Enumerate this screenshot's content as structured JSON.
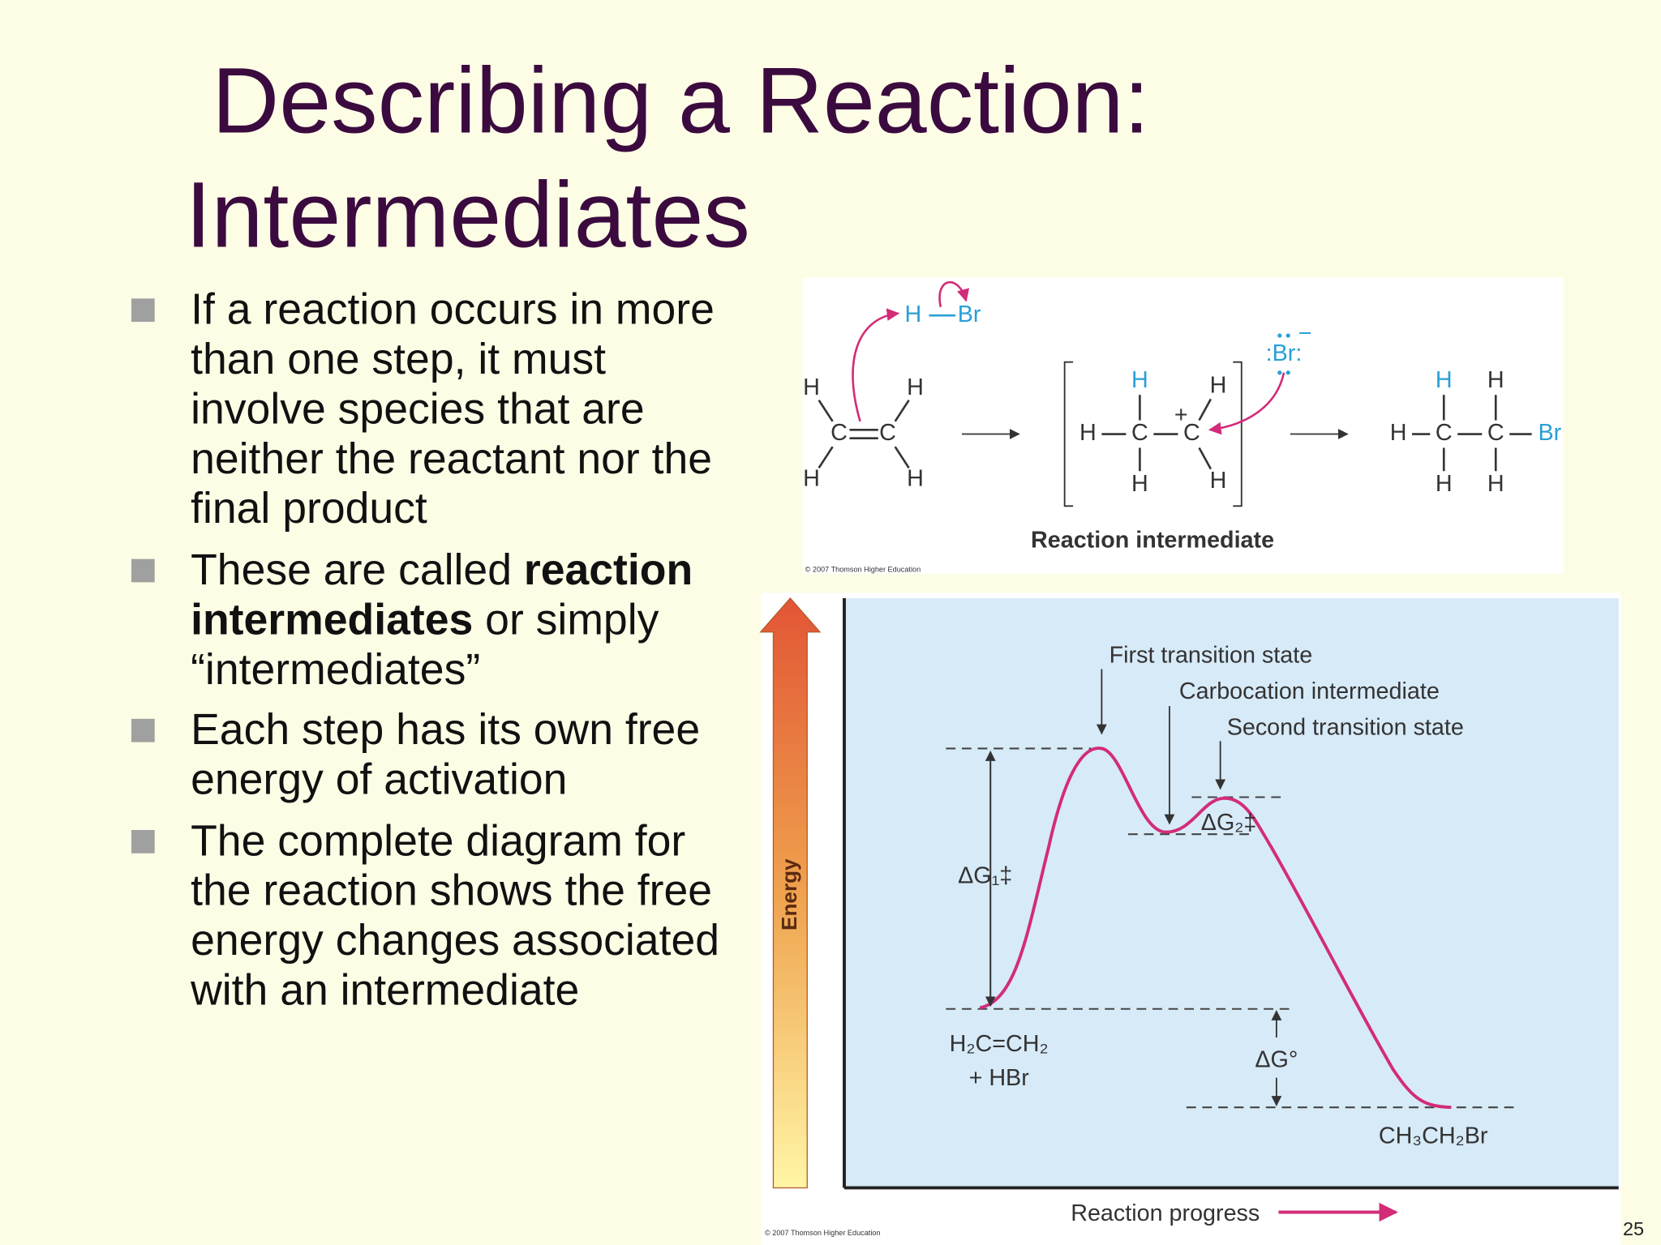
{
  "slide": {
    "title": [
      "Describing a Reaction:",
      "Intermediates"
    ],
    "bullets": [
      {
        "lines": [
          [
            {
              "text": "If a reaction occurs in more"
            }
          ],
          [
            {
              "text": "than one step, it must"
            }
          ],
          [
            {
              "text": "involve species that are"
            }
          ],
          [
            {
              "text": "neither the reactant nor the"
            }
          ],
          [
            {
              "text": "final product"
            }
          ]
        ]
      },
      {
        "lines": [
          [
            {
              "text": "These are called "
            },
            {
              "text": "reaction",
              "bold": true
            }
          ],
          [
            {
              "text": "intermediates",
              "bold": true
            },
            {
              "text": " or simply"
            }
          ],
          [
            {
              "text": "“intermediates”"
            }
          ]
        ]
      },
      {
        "lines": [
          [
            {
              "text": "Each step has its own free"
            }
          ],
          [
            {
              "text": "energy of activation"
            }
          ]
        ]
      },
      {
        "lines": [
          [
            {
              "text": "The complete diagram for"
            }
          ],
          [
            {
              "text": "the reaction shows the free"
            }
          ],
          [
            {
              "text": "energy changes associated"
            }
          ],
          [
            {
              "text": "with an intermediate"
            }
          ]
        ]
      }
    ],
    "page_number": "25"
  },
  "mechanism": {
    "reagent": [
      "H",
      "Br"
    ],
    "reactant": [
      "H",
      "H",
      "C",
      "C",
      "H",
      "H"
    ],
    "intermediate": [
      "H",
      "H",
      "+",
      "H",
      "C",
      "C",
      "H",
      "H"
    ],
    "bromide": ":Br:",
    "bromide_charge": "−",
    "product": [
      "H",
      "H",
      "H",
      "C",
      "C",
      "Br",
      "H",
      "H"
    ],
    "caption": "Reaction intermediate",
    "credit": "© 2007 Thomson Higher Education"
  },
  "energy_diagram": {
    "y_axis_label": "Energy",
    "x_axis_label": "Reaction progress",
    "annotations": [
      "First transition state",
      "Carbocation intermediate",
      "Second transition state"
    ],
    "delta_g1": "ΔG₁‡",
    "delta_g2": "ΔG₂‡",
    "delta_g": "ΔG°",
    "reactants": [
      "H₂C=CH₂",
      "+ HBr"
    ],
    "product": "CH₃CH₂Br",
    "credit": "© 2007 Thomson Higher Education"
  }
}
